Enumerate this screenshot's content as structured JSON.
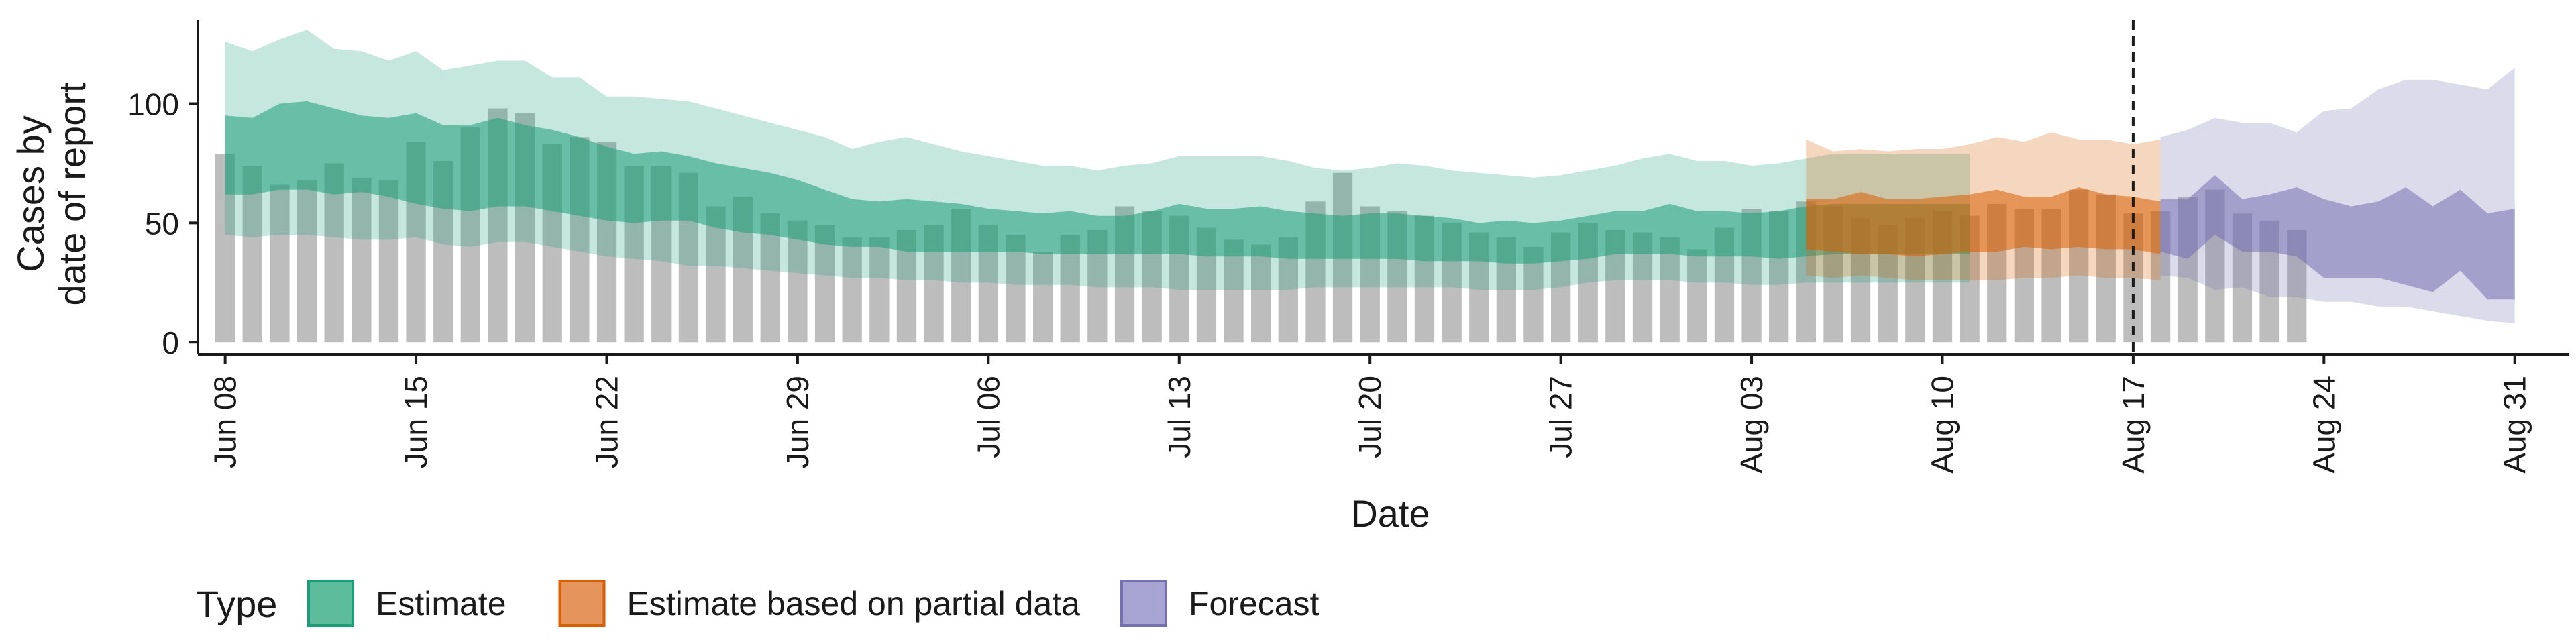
{
  "chart_data": {
    "type": "bar",
    "title": "",
    "xlabel": "Date",
    "ylabel_lines": [
      "Cases by",
      "date of report"
    ],
    "ylim": [
      -5,
      135
    ],
    "yticks": [
      0,
      50,
      100
    ],
    "xlim": [
      "2020-06-07",
      "2020-09-02"
    ],
    "xticks": [
      {
        "date": "2020-06-08",
        "label": "Jun 08"
      },
      {
        "date": "2020-06-15",
        "label": "Jun 15"
      },
      {
        "date": "2020-06-22",
        "label": "Jun 22"
      },
      {
        "date": "2020-06-29",
        "label": "Jun 29"
      },
      {
        "date": "2020-07-06",
        "label": "Jul 06"
      },
      {
        "date": "2020-07-13",
        "label": "Jul 13"
      },
      {
        "date": "2020-07-20",
        "label": "Jul 20"
      },
      {
        "date": "2020-07-27",
        "label": "Jul 27"
      },
      {
        "date": "2020-08-03",
        "label": "Aug 03"
      },
      {
        "date": "2020-08-10",
        "label": "Aug 10"
      },
      {
        "date": "2020-08-17",
        "label": "Aug 17"
      },
      {
        "date": "2020-08-24",
        "label": "Aug 24"
      },
      {
        "date": "2020-08-31",
        "label": "Aug 31"
      }
    ],
    "vline_date": "2020-08-17",
    "bars": {
      "start_date": "2020-06-08",
      "color": "#bdbdbd",
      "values": [
        79,
        74,
        66,
        68,
        75,
        69,
        68,
        84,
        76,
        90,
        98,
        96,
        83,
        86,
        84,
        74,
        74,
        71,
        57,
        61,
        54,
        51,
        49,
        44,
        44,
        47,
        49,
        56,
        49,
        45,
        38,
        45,
        47,
        57,
        55,
        53,
        48,
        43,
        41,
        44,
        59,
        71,
        57,
        55,
        53,
        50,
        46,
        44,
        40,
        46,
        50,
        47,
        46,
        44,
        39,
        48,
        56,
        55,
        59,
        57,
        52,
        49,
        52,
        55,
        53,
        58,
        56,
        56,
        64,
        62,
        54,
        55,
        61,
        64,
        54,
        51,
        47
      ]
    },
    "series": [
      {
        "name": "Estimate",
        "color": "#1b9e77",
        "fill_color": "#5bbb9a",
        "band_color": "#c5e7db",
        "x_start": "2020-06-08",
        "outer_lower": [
          45,
          44,
          45,
          45,
          44,
          43,
          43,
          44,
          41,
          40,
          42,
          42,
          40,
          38,
          36,
          35,
          34,
          32,
          32,
          31,
          30,
          29,
          28,
          27,
          27,
          26,
          26,
          25,
          25,
          24,
          24,
          24,
          23,
          23,
          23,
          22,
          22,
          22,
          22,
          22,
          23,
          23,
          23,
          23,
          23,
          23,
          22,
          22,
          22,
          23,
          25,
          26,
          26,
          26,
          25,
          25,
          24,
          24,
          25,
          25,
          25,
          25,
          25,
          25,
          25
        ],
        "outer_upper": [
          126,
          122,
          127,
          131,
          123,
          122,
          118,
          122,
          114,
          116,
          118,
          118,
          111,
          111,
          103,
          103,
          102,
          101,
          98,
          95,
          92,
          89,
          86,
          81,
          84,
          86,
          83,
          80,
          78,
          76,
          74,
          74,
          72,
          74,
          75,
          78,
          78,
          78,
          78,
          76,
          73,
          72,
          73,
          75,
          74,
          72,
          71,
          70,
          69,
          70,
          72,
          74,
          77,
          79,
          76,
          76,
          74,
          75,
          77,
          79,
          79,
          79,
          79,
          79,
          79
        ],
        "inner_lower": [
          62,
          62,
          64,
          64,
          62,
          63,
          61,
          58,
          56,
          55,
          57,
          57,
          55,
          53,
          51,
          50,
          51,
          51,
          48,
          46,
          45,
          43,
          41,
          40,
          40,
          38,
          38,
          38,
          38,
          38,
          37,
          37,
          37,
          37,
          37,
          37,
          36,
          36,
          36,
          35,
          35,
          35,
          35,
          35,
          34,
          34,
          34,
          33,
          33,
          34,
          35,
          37,
          37,
          37,
          36,
          36,
          36,
          35,
          36,
          37,
          37,
          37,
          37,
          37,
          37
        ],
        "inner_upper": [
          95,
          94,
          100,
          101,
          98,
          95,
          94,
          96,
          91,
          91,
          94,
          91,
          89,
          86,
          82,
          79,
          80,
          78,
          75,
          73,
          71,
          68,
          64,
          60,
          59,
          60,
          59,
          58,
          56,
          55,
          54,
          55,
          53,
          53,
          55,
          58,
          56,
          56,
          57,
          55,
          54,
          53,
          54,
          54,
          53,
          52,
          50,
          51,
          50,
          51,
          53,
          55,
          55,
          58,
          55,
          55,
          54,
          55,
          57,
          58,
          58,
          58,
          58,
          58,
          58
        ]
      },
      {
        "name": "Estimate based on partial data",
        "color": "#d95f02",
        "fill_color": "#e5945c",
        "band_color": "#f6d3bb",
        "x_start": "2020-08-05",
        "outer_lower": [
          28,
          27,
          28,
          27,
          26,
          26,
          26,
          26,
          27,
          27,
          28,
          27,
          27,
          26
        ],
        "outer_upper": [
          85,
          80,
          81,
          80,
          81,
          81,
          83,
          86,
          84,
          88,
          85,
          85,
          83,
          85
        ],
        "inner_lower": [
          39,
          38,
          37,
          37,
          36,
          37,
          38,
          38,
          40,
          39,
          40,
          39,
          39,
          37
        ],
        "inner_upper": [
          60,
          60,
          63,
          60,
          60,
          61,
          62,
          64,
          61,
          61,
          65,
          62,
          61,
          59
        ]
      },
      {
        "name": "Forecast",
        "color": "#7570b3",
        "fill_color": "#a8a4d1",
        "band_color": "#dcdaed",
        "x_start": "2020-08-18",
        "outer_lower": [
          28,
          27,
          22,
          23,
          19,
          19,
          17,
          17,
          15,
          15,
          13,
          11,
          9,
          8
        ],
        "outer_upper": [
          86,
          89,
          94,
          92,
          92,
          88,
          97,
          98,
          106,
          110,
          110,
          108,
          106,
          115
        ],
        "inner_lower": [
          38,
          35,
          45,
          38,
          38,
          36,
          27,
          27,
          27,
          24,
          21,
          30,
          18,
          18
        ],
        "inner_upper": [
          60,
          60,
          70,
          60,
          62,
          65,
          60,
          57,
          59,
          65,
          57,
          64,
          54,
          56
        ]
      }
    ],
    "legend": {
      "title": "Type",
      "placement": "bottom",
      "entries": [
        "Estimate",
        "Estimate based on partial data",
        "Forecast"
      ]
    }
  }
}
